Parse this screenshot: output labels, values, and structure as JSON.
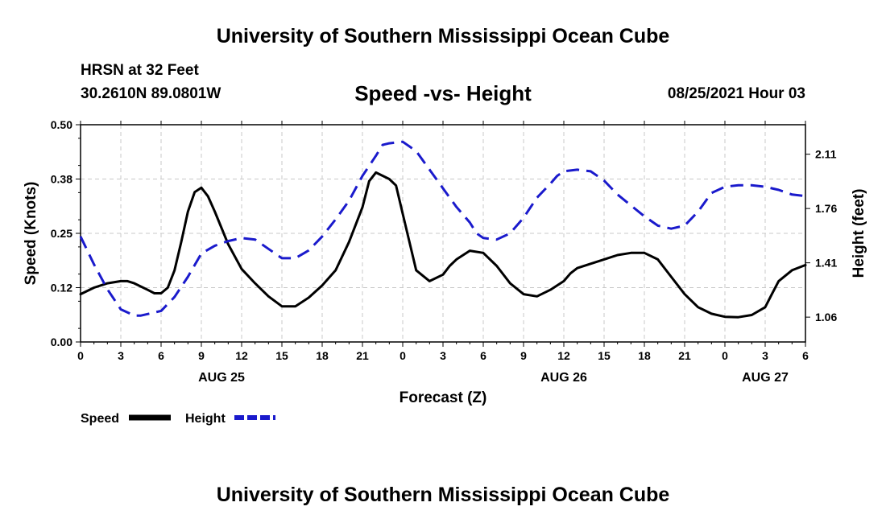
{
  "header": {
    "title": "University of Southern Mississippi Ocean Cube",
    "station": "HRSN at 32 Feet",
    "coords": "30.2610N  89.0801W",
    "chart_title": "Speed -vs- Height",
    "run_date": "08/25/2021 Hour 03"
  },
  "footer": {
    "title": "University of Southern Mississippi Ocean Cube"
  },
  "chart_data": {
    "type": "line",
    "title": "Speed -vs- Height",
    "xlabel": "Forecast (Z)",
    "ylabel": "Speed (Knots)",
    "y2label": "Height (feet)",
    "x_range_hours": [
      0,
      54
    ],
    "x_ticks": [
      "0",
      "3",
      "6",
      "9",
      "12",
      "15",
      "18",
      "21",
      "0",
      "3",
      "6",
      "9",
      "12",
      "15",
      "18",
      "21",
      "0",
      "3",
      "6"
    ],
    "date_labels": [
      {
        "label": "AUG 25",
        "hour": 10.5
      },
      {
        "label": "AUG 26",
        "hour": 36
      },
      {
        "label": "AUG 27",
        "hour": 51
      }
    ],
    "ylim": [
      0,
      0.5
    ],
    "y_ticks": [
      "0.00",
      "0.12",
      "0.25",
      "0.38",
      "0.50"
    ],
    "y2lim": [
      0.9,
      2.3
    ],
    "y2_ticks": [
      {
        "label": "1.06",
        "value": 1.06
      },
      {
        "label": "1.41",
        "value": 1.41
      },
      {
        "label": "1.76",
        "value": 1.76
      },
      {
        "label": "2.11",
        "value": 2.11
      }
    ],
    "grid": true,
    "legend_position": "bottom-left",
    "series": [
      {
        "name": "Speed",
        "axis": "left",
        "color": "#000000",
        "style": "solid",
        "x": [
          0,
          1,
          2,
          3,
          3.5,
          4,
          5,
          5.5,
          6,
          6.5,
          7,
          7.5,
          8,
          8.5,
          9,
          9.5,
          10,
          11,
          12,
          13,
          14,
          15,
          16,
          17,
          18,
          19,
          20,
          21,
          21.5,
          22,
          23,
          23.5,
          24,
          25,
          26,
          27,
          27.5,
          28,
          29,
          30,
          31,
          32,
          33,
          34,
          35,
          36,
          36.5,
          37,
          38,
          39,
          40,
          41,
          42,
          43,
          44,
          45,
          46,
          47,
          48,
          49,
          50,
          51,
          51.5,
          52,
          53,
          54
        ],
        "values": [
          0.11,
          0.125,
          0.135,
          0.14,
          0.14,
          0.135,
          0.12,
          0.112,
          0.112,
          0.125,
          0.165,
          0.23,
          0.3,
          0.345,
          0.355,
          0.335,
          0.3,
          0.225,
          0.168,
          0.135,
          0.105,
          0.082,
          0.082,
          0.102,
          0.13,
          0.165,
          0.23,
          0.31,
          0.37,
          0.39,
          0.375,
          0.36,
          0.295,
          0.165,
          0.14,
          0.155,
          0.175,
          0.19,
          0.21,
          0.205,
          0.175,
          0.135,
          0.11,
          0.105,
          0.12,
          0.14,
          0.158,
          0.17,
          0.18,
          0.19,
          0.2,
          0.205,
          0.205,
          0.19,
          0.15,
          0.11,
          0.08,
          0.065,
          0.058,
          0.057,
          0.062,
          0.08,
          0.11,
          0.14,
          0.165,
          0.177
        ]
      },
      {
        "name": "Height",
        "axis": "right",
        "color": "#1a1acc",
        "style": "dashed",
        "x": [
          0,
          1,
          2,
          3,
          4,
          4.5,
          5,
          6,
          7,
          8,
          9,
          10,
          11,
          12,
          13,
          14,
          15,
          16,
          17,
          18,
          19,
          20,
          21,
          22,
          22.5,
          23,
          24,
          25,
          26,
          27,
          28,
          29,
          29.5,
          30,
          31,
          32,
          33,
          34,
          35,
          35.5,
          36,
          37,
          38,
          39,
          40,
          41,
          42,
          43,
          44,
          45,
          46,
          47,
          48,
          49,
          50,
          51,
          52,
          53,
          54
        ],
        "values": [
          1.58,
          1.4,
          1.24,
          1.11,
          1.07,
          1.07,
          1.08,
          1.1,
          1.19,
          1.32,
          1.47,
          1.52,
          1.55,
          1.57,
          1.56,
          1.5,
          1.44,
          1.44,
          1.49,
          1.58,
          1.69,
          1.81,
          1.97,
          2.1,
          2.17,
          2.18,
          2.19,
          2.13,
          2.01,
          1.89,
          1.77,
          1.67,
          1.6,
          1.57,
          1.56,
          1.6,
          1.7,
          1.83,
          1.92,
          1.97,
          2.0,
          2.01,
          2.0,
          1.94,
          1.85,
          1.78,
          1.71,
          1.65,
          1.63,
          1.65,
          1.74,
          1.86,
          1.9,
          1.91,
          1.91,
          1.9,
          1.88,
          1.85,
          1.84
        ]
      }
    ]
  }
}
